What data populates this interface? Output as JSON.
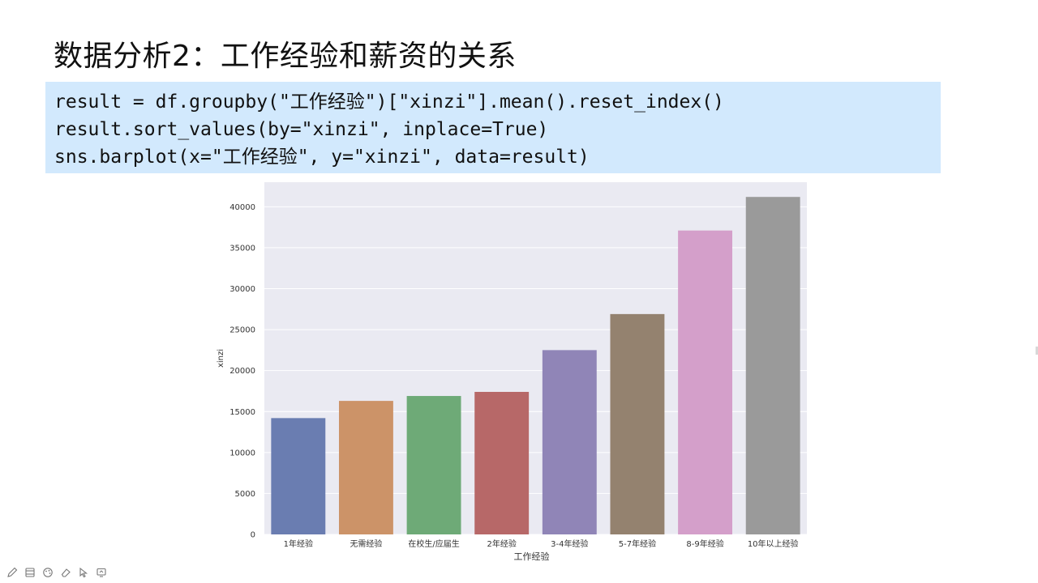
{
  "slide": {
    "title": "数据分析2：工作经验和薪资的关系"
  },
  "code": {
    "lines": [
      "result = df.groupby(\"工作经验\")[\"xinzi\"].mean().reset_index()",
      "result.sort_values(by=\"xinzi\", inplace=True)",
      "sns.barplot(x=\"工作经验\", y=\"xinzi\", data=result)"
    ],
    "background": "#d2e9fd"
  },
  "chart_data": {
    "type": "bar",
    "categories": [
      "1年经验",
      "无需经验",
      "在校生/应届生",
      "2年经验",
      "3-4年经验",
      "5-7年经验",
      "8-9年经验",
      "10年以上经验"
    ],
    "values": [
      14200,
      16300,
      16900,
      17400,
      22500,
      26900,
      37100,
      41200
    ],
    "colors": [
      "#6a7db1",
      "#cc9368",
      "#6eaa77",
      "#b76868",
      "#9085b7",
      "#94826f",
      "#d49fca",
      "#9a9a9a"
    ],
    "xlabel": "工作经验",
    "ylabel": "xinzi",
    "ylim": [
      0,
      43000
    ],
    "yticks": [
      0,
      5000,
      10000,
      15000,
      20000,
      25000,
      30000,
      35000,
      40000
    ],
    "grid": true,
    "plot_background": "#eaeaf2"
  },
  "toolbar": {
    "icons": [
      "pen-icon",
      "window-icon",
      "palette-icon",
      "eraser-icon",
      "pointer-icon",
      "screen-icon"
    ]
  }
}
